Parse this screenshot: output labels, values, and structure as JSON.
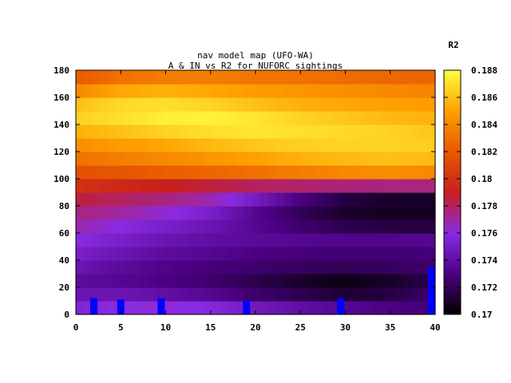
{
  "chart_data": {
    "type": "heatmap",
    "title_line1": "nav model map (UFO-WA)",
    "title_line2": "A & IN vs R2 for NUFORC sightings",
    "colorbar_label": "R2",
    "xlim": [
      0,
      40
    ],
    "ylim": [
      0,
      180
    ],
    "zlim": [
      0.17,
      0.188
    ],
    "x_ticks": [
      "0",
      "5",
      "10",
      "15",
      "20",
      "25",
      "30",
      "35",
      "40"
    ],
    "y_ticks": [
      "0",
      "20",
      "40",
      "60",
      "80",
      "100",
      "120",
      "140",
      "160",
      "180"
    ],
    "colorbar_ticks": [
      "0.17",
      "0.172",
      "0.174",
      "0.176",
      "0.178",
      "0.18",
      "0.182",
      "0.184",
      "0.186",
      "0.188"
    ],
    "palette": [
      "#000000",
      "#4b0082",
      "#8a2be2",
      "#c81e1e",
      "#e85a00",
      "#ffa000",
      "#ffff40"
    ],
    "grid": false,
    "colorbar_position": "right",
    "heat_rows": [
      {
        "y": 5,
        "values": [
          0.1755,
          0.176,
          0.1762,
          0.1758,
          0.1748,
          0.174,
          0.1735,
          0.173,
          0.1728
        ]
      },
      {
        "y": 15,
        "values": [
          0.1745,
          0.1745,
          0.174,
          0.1735,
          0.1725,
          0.1718,
          0.1712,
          0.1715,
          0.1725
        ]
      },
      {
        "y": 25,
        "values": [
          0.1738,
          0.1735,
          0.173,
          0.1725,
          0.1718,
          0.171,
          0.1705,
          0.171,
          0.1718
        ]
      },
      {
        "y": 35,
        "values": [
          0.1745,
          0.1738,
          0.1732,
          0.1728,
          0.1725,
          0.1722,
          0.172,
          0.1722,
          0.1725
        ]
      },
      {
        "y": 45,
        "values": [
          0.1752,
          0.1745,
          0.1738,
          0.1735,
          0.173,
          0.1728,
          0.1727,
          0.1727,
          0.1728
        ]
      },
      {
        "y": 55,
        "values": [
          0.176,
          0.1752,
          0.1745,
          0.174,
          0.1737,
          0.1735,
          0.1733,
          0.1733,
          0.1735
        ]
      },
      {
        "y": 65,
        "values": [
          0.1768,
          0.176,
          0.1752,
          0.1745,
          0.1735,
          0.1725,
          0.1718,
          0.1715,
          0.1715
        ]
      },
      {
        "y": 75,
        "values": [
          0.1775,
          0.177,
          0.1762,
          0.1752,
          0.1735,
          0.172,
          0.171,
          0.1708,
          0.1708
        ]
      },
      {
        "y": 85,
        "values": [
          0.1785,
          0.178,
          0.1775,
          0.1768,
          0.175,
          0.173,
          0.1715,
          0.171,
          0.171
        ]
      },
      {
        "y": 95,
        "values": [
          0.18,
          0.1795,
          0.179,
          0.1785,
          0.178,
          0.1778,
          0.1776,
          0.1775,
          0.1775
        ]
      },
      {
        "y": 105,
        "values": [
          0.1815,
          0.1818,
          0.1822,
          0.1825,
          0.183,
          0.1835,
          0.184,
          0.1842,
          0.184
        ]
      },
      {
        "y": 115,
        "values": [
          0.183,
          0.1835,
          0.184,
          0.1845,
          0.185,
          0.1855,
          0.1858,
          0.186,
          0.1858
        ]
      },
      {
        "y": 125,
        "values": [
          0.1842,
          0.1848,
          0.1852,
          0.1858,
          0.1862,
          0.1865,
          0.1866,
          0.1866,
          0.1864
        ]
      },
      {
        "y": 135,
        "values": [
          0.1855,
          0.186,
          0.1866,
          0.187,
          0.1872,
          0.187,
          0.1868,
          0.1866,
          0.1862
        ]
      },
      {
        "y": 145,
        "values": [
          0.1865,
          0.187,
          0.1875,
          0.1876,
          0.1872,
          0.1866,
          0.1862,
          0.1858,
          0.1855
        ]
      },
      {
        "y": 155,
        "values": [
          0.186,
          0.1868,
          0.187,
          0.1866,
          0.186,
          0.1855,
          0.1852,
          0.185,
          0.1848
        ]
      },
      {
        "y": 165,
        "values": [
          0.184,
          0.1852,
          0.1855,
          0.1852,
          0.1848,
          0.1845,
          0.1842,
          0.184,
          0.1838
        ]
      },
      {
        "y": 175,
        "values": [
          0.182,
          0.183,
          0.1835,
          0.1835,
          0.1832,
          0.183,
          0.1828,
          0.1826,
          0.1825
        ]
      }
    ],
    "heat_x": [
      0,
      5,
      10,
      15,
      20,
      25,
      30,
      35,
      40
    ],
    "markers": {
      "color": "#0000ff",
      "points": [
        {
          "x": 2,
          "y_top": 12
        },
        {
          "x": 5,
          "y_top": 11
        },
        {
          "x": 9.5,
          "y_top": 12
        },
        {
          "x": 19,
          "y_top": 10
        },
        {
          "x": 29.5,
          "y_top": 12
        },
        {
          "x": 39.7,
          "y_top": 35
        }
      ]
    }
  }
}
